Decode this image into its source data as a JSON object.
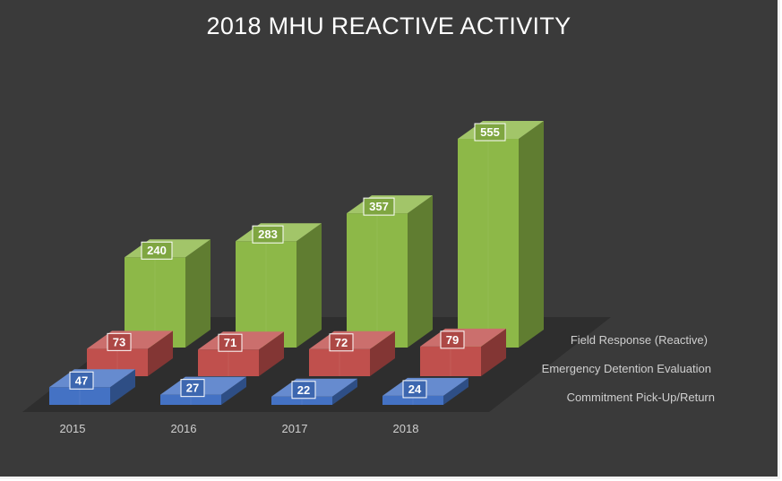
{
  "chart_data": {
    "type": "bar",
    "subtype": "3d-column",
    "title": "2018 MHU REACTIVE ACTIVITY",
    "categories": [
      "2015",
      "2016",
      "2017",
      "2018"
    ],
    "series": [
      {
        "name": "Commitment Pick-Up/Return",
        "values": [
          47,
          27,
          22,
          24
        ],
        "color": "#4472c4"
      },
      {
        "name": "Emergency Detention Evaluation",
        "values": [
          73,
          71,
          72,
          79
        ],
        "color": "#c0504d"
      },
      {
        "name": "Field Response (Reactive)",
        "values": [
          240,
          283,
          357,
          555
        ],
        "color": "#8db848"
      }
    ],
    "data_labels": true,
    "background": "#3a3a3a",
    "grid": false
  }
}
